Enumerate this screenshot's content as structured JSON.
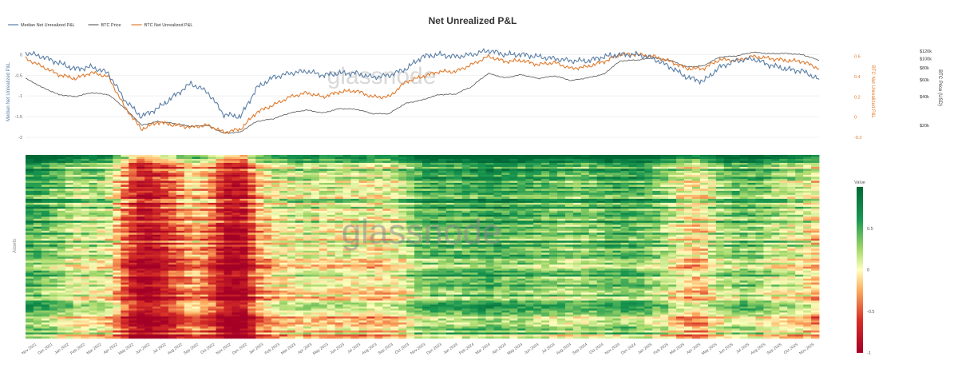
{
  "title": "Net Unrealized P&L",
  "watermark": "glassnode",
  "legend": {
    "placement": "top-left",
    "items": [
      {
        "label": "Median Net Unrealized P&L",
        "color": "#5b7fa6"
      },
      {
        "label": "BTC Price",
        "color": "#666666"
      },
      {
        "label": "BTC Net Unrealized P&L",
        "color": "#e07b2e"
      }
    ]
  },
  "colors": {
    "median": "#5b7fa6",
    "price": "#555555",
    "btc_nupl": "#e07b2e",
    "heat_low": "#a50026",
    "heat_mid": "#ffffbf",
    "heat_high": "#006837"
  },
  "chart_data": [
    {
      "type": "line",
      "x_axis": {
        "kind": "date",
        "range": [
          "2021-11",
          "2025-11"
        ]
      },
      "y_left": {
        "label": "Median Net Unrealized P&L",
        "range": [
          -2,
          0.2
        ],
        "ticks": [
          "0",
          "-0.5",
          "-1",
          "-1.5",
          "-2"
        ]
      },
      "y_right_1": {
        "label": "BTC Net Unrealized P&L",
        "range": [
          -0.2,
          0.7
        ],
        "ticks": [
          "0.6",
          "0.4",
          "0.2",
          "0",
          "-0.2"
        ]
      },
      "y_right_2": {
        "label": "BTC Price (USD)",
        "scale": "log",
        "ticks": [
          "$120k",
          "$100k",
          "$80k",
          "$60k",
          "$40k",
          "$20k"
        ]
      },
      "x": [
        "2021-11",
        "2021-12",
        "2022-01",
        "2022-02",
        "2022-03",
        "2022-04",
        "2022-05",
        "2022-06",
        "2022-07",
        "2022-08",
        "2022-09",
        "2022-10",
        "2022-11",
        "2022-12",
        "2023-01",
        "2023-02",
        "2023-03",
        "2023-04",
        "2023-05",
        "2023-06",
        "2023-07",
        "2023-08",
        "2023-09",
        "2023-10",
        "2023-11",
        "2023-12",
        "2024-01",
        "2024-02",
        "2024-03",
        "2024-04",
        "2024-05",
        "2024-06",
        "2024-07",
        "2024-08",
        "2024-09",
        "2024-10",
        "2024-11",
        "2024-12",
        "2025-01",
        "2025-02",
        "2025-03",
        "2025-04",
        "2025-05",
        "2025-06",
        "2025-07",
        "2025-08",
        "2025-09",
        "2025-10",
        "2025-11"
      ],
      "series": [
        {
          "name": "Median Net Unrealized P&L",
          "axis": "left",
          "values": [
            0.05,
            -0.05,
            -0.2,
            -0.35,
            -0.3,
            -0.45,
            -1.1,
            -1.5,
            -1.3,
            -1.0,
            -0.7,
            -0.9,
            -1.45,
            -1.5,
            -0.8,
            -0.55,
            -0.45,
            -0.4,
            -0.5,
            -0.45,
            -0.45,
            -0.55,
            -0.5,
            -0.35,
            -0.05,
            0.0,
            -0.05,
            0.0,
            0.1,
            0.0,
            0.0,
            -0.05,
            -0.1,
            -0.15,
            -0.15,
            -0.05,
            0.0,
            0.0,
            -0.1,
            -0.3,
            -0.55,
            -0.65,
            -0.3,
            -0.15,
            -0.1,
            -0.25,
            -0.35,
            -0.4,
            -0.6
          ]
        },
        {
          "name": "BTC Price",
          "axis": "right_2",
          "values": [
            62000,
            50000,
            42000,
            40000,
            44000,
            42000,
            30000,
            20000,
            22000,
            21000,
            19500,
            20000,
            16500,
            17000,
            22000,
            23500,
            27000,
            29000,
            27000,
            30000,
            29500,
            26500,
            26500,
            34000,
            37000,
            42000,
            42500,
            51000,
            70000,
            63000,
            68000,
            62000,
            66000,
            59000,
            63000,
            69000,
            95000,
            97000,
            102000,
            96000,
            82000,
            84000,
            104000,
            107000,
            117000,
            113000,
            114000,
            110000,
            96000
          ]
        },
        {
          "name": "BTC Net Unrealized P&L",
          "axis": "right_1",
          "values": [
            0.58,
            0.5,
            0.42,
            0.38,
            0.44,
            0.4,
            0.1,
            -0.12,
            -0.05,
            -0.08,
            -0.1,
            -0.08,
            -0.15,
            -0.12,
            0.05,
            0.12,
            0.2,
            0.24,
            0.2,
            0.25,
            0.26,
            0.2,
            0.2,
            0.35,
            0.4,
            0.45,
            0.45,
            0.52,
            0.6,
            0.55,
            0.56,
            0.52,
            0.54,
            0.48,
            0.5,
            0.55,
            0.62,
            0.62,
            0.6,
            0.55,
            0.48,
            0.48,
            0.57,
            0.56,
            0.6,
            0.58,
            0.56,
            0.55,
            0.48
          ]
        }
      ]
    },
    {
      "type": "heatmap",
      "ylabel": "Assets",
      "value_range": [
        -1,
        1
      ],
      "colorbar": {
        "label": "Value",
        "ticks": [
          "0.5",
          "0",
          "-0.5",
          "-1"
        ]
      },
      "x_tick_labels": [
        "Nov 2021",
        "Dec 2021",
        "Jan 2022",
        "Feb 2022",
        "Mar 2022",
        "Apr 2022",
        "May 2022",
        "Jun 2022",
        "Jul 2022",
        "Aug 2022",
        "Sep 2022",
        "Oct 2022",
        "Nov 2022",
        "Dec 2022",
        "Jan 2023",
        "Feb 2023",
        "Mar 2023",
        "Apr 2023",
        "May 2023",
        "Jun 2023",
        "Jul 2023",
        "Aug 2023",
        "Sep 2023",
        "Oct 2023",
        "Nov 2023",
        "Dec 2023",
        "Jan 2024",
        "Feb 2024",
        "Mar 2024",
        "Apr 2024",
        "May 2024",
        "Jun 2024",
        "Jul 2024",
        "Aug 2024",
        "Sep 2024",
        "Oct 2024",
        "Nov 2024",
        "Dec 2024",
        "Jan 2025",
        "Feb 2025",
        "Mar 2025",
        "Apr 2025",
        "May 2025",
        "Jun 2025",
        "Jul 2025",
        "Aug 2025",
        "Sep 2025",
        "Oct 2025",
        "Nov 2025"
      ]
    }
  ]
}
